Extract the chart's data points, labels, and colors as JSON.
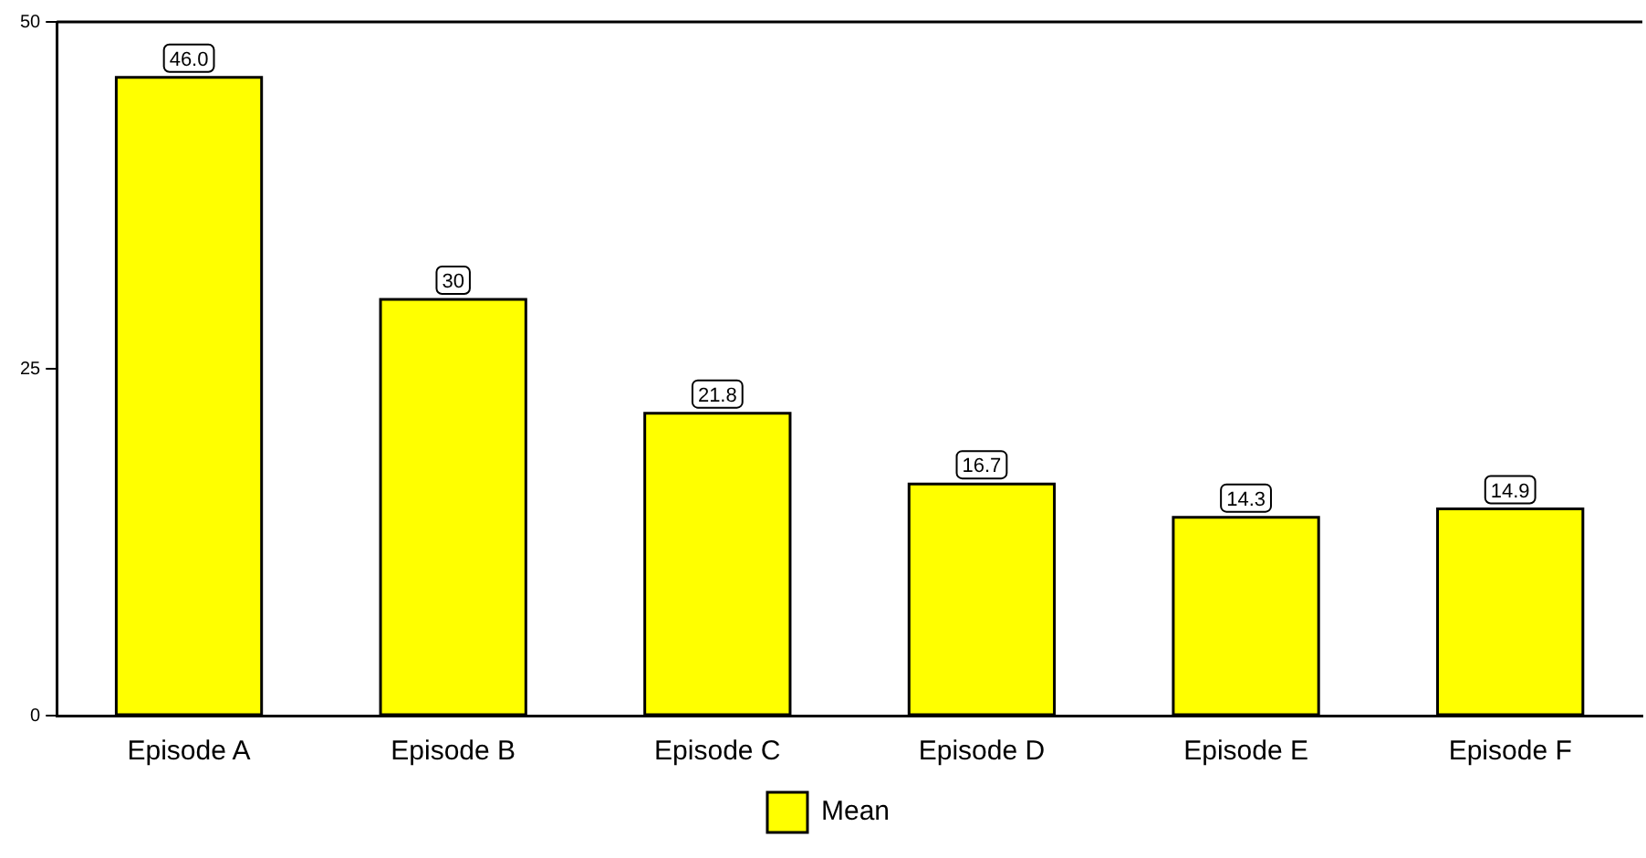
{
  "chart_data": {
    "type": "bar",
    "categories": [
      "Episode A",
      "Episode B",
      "Episode C",
      "Episode D",
      "Episode E",
      "Episode F"
    ],
    "series": [
      {
        "name": "Mean",
        "color": "#ffff00",
        "values": [
          46,
          30,
          21.8,
          16.7,
          14.3,
          14.9
        ],
        "value_labels": [
          "46.0",
          "30",
          "21.8",
          "16.7",
          "14.3",
          "14.9"
        ]
      }
    ],
    "ylim": [
      0,
      50
    ],
    "yticks": [
      0,
      25,
      50
    ],
    "grid": false,
    "legend": "bottom"
  }
}
